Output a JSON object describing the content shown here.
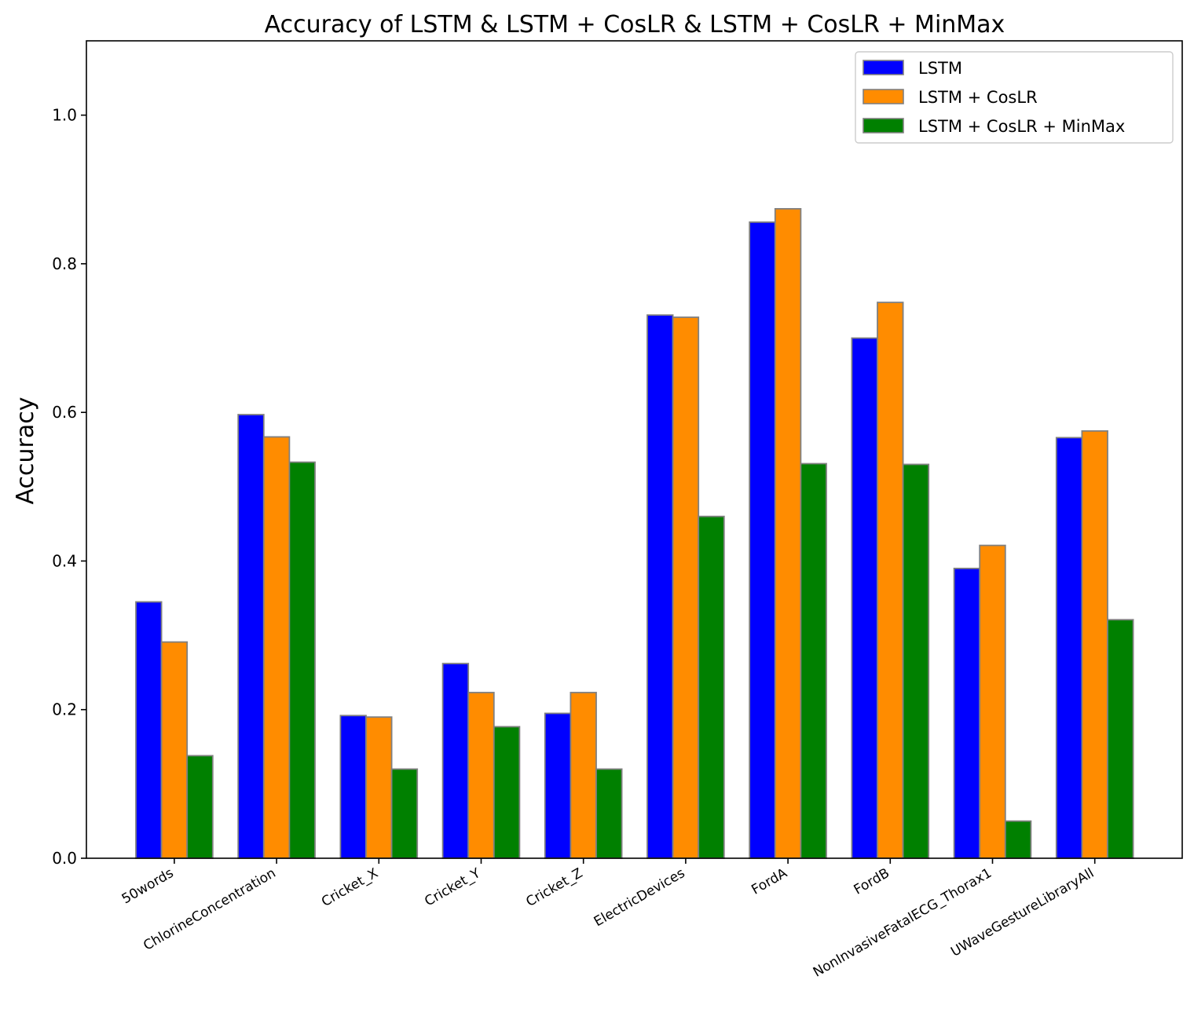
{
  "chart_data": {
    "type": "bar",
    "title": "Accuracy of LSTM & LSTM + CosLR & LSTM + CosLR + MinMax",
    "xlabel": "",
    "ylabel": "Accuracy",
    "ylim": [
      0,
      1.1
    ],
    "yticks": [
      "0.0",
      "0.2",
      "0.4",
      "0.6",
      "0.8",
      "1.0"
    ],
    "grid": false,
    "legend_position": "top-right",
    "bar_edge_color": "#808080",
    "categories": [
      "50words",
      "ChlorineConcentration",
      "Cricket_X",
      "Cricket_Y",
      "Cricket_Z",
      "ElectricDevices",
      "FordA",
      "FordB",
      "NonInvasiveFatalECG_Thorax1",
      "UWaveGestureLibraryAll"
    ],
    "series": [
      {
        "name": "LSTM",
        "color": "#0000ff",
        "values": [
          0.345,
          0.597,
          0.192,
          0.262,
          0.195,
          0.731,
          0.856,
          0.7,
          0.39,
          0.566
        ]
      },
      {
        "name": "LSTM + CosLR",
        "color": "#ff8c00",
        "values": [
          0.291,
          0.567,
          0.19,
          0.223,
          0.223,
          0.728,
          0.874,
          0.748,
          0.421,
          0.575
        ]
      },
      {
        "name": "LSTM + CosLR + MinMax",
        "color": "#008000",
        "values": [
          0.138,
          0.533,
          0.12,
          0.177,
          0.12,
          0.46,
          0.531,
          0.53,
          0.05,
          0.321
        ]
      }
    ]
  }
}
